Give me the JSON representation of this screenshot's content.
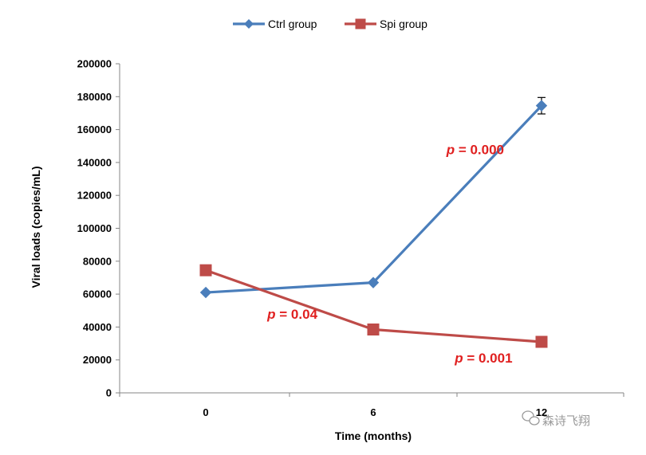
{
  "chart_data": {
    "type": "line",
    "x": [
      0,
      6,
      12
    ],
    "xlabel": "Time (months)",
    "ylabel": "Viral loads (copies/mL)",
    "ylim": [
      0,
      200000
    ],
    "y_ticks": [
      "0",
      "20000",
      "40000",
      "60000",
      "80000",
      "100000",
      "120000",
      "140000",
      "160000",
      "180000",
      "200000"
    ],
    "x_ticks": [
      "0",
      "6",
      "12"
    ],
    "series": [
      {
        "name": "Ctrl group",
        "values": [
          61000,
          67000,
          174500
        ],
        "error": [
          0,
          0,
          5000
        ],
        "color": "#4a7ebb",
        "marker": "diamond"
      },
      {
        "name": "Spi group",
        "values": [
          74500,
          38500,
          31000
        ],
        "error": [
          0,
          0,
          0
        ],
        "color": "#be4b48",
        "marker": "square"
      }
    ],
    "annotations": [
      {
        "p_label": "p",
        "text": " = 0.000",
        "x": 8.6,
        "y": 145000,
        "color": "#e02020"
      },
      {
        "p_label": "p",
        "text": " = 0.04",
        "x": 2.2,
        "y": 45000,
        "color": "#e02020"
      },
      {
        "p_label": "p",
        "text": " = 0.001",
        "x": 8.9,
        "y": 18500,
        "color": "#e02020"
      }
    ],
    "legend_position": "top-center",
    "grid": false
  },
  "watermark": {
    "icon": "wechat-icon",
    "text": "森诗飞翔"
  }
}
